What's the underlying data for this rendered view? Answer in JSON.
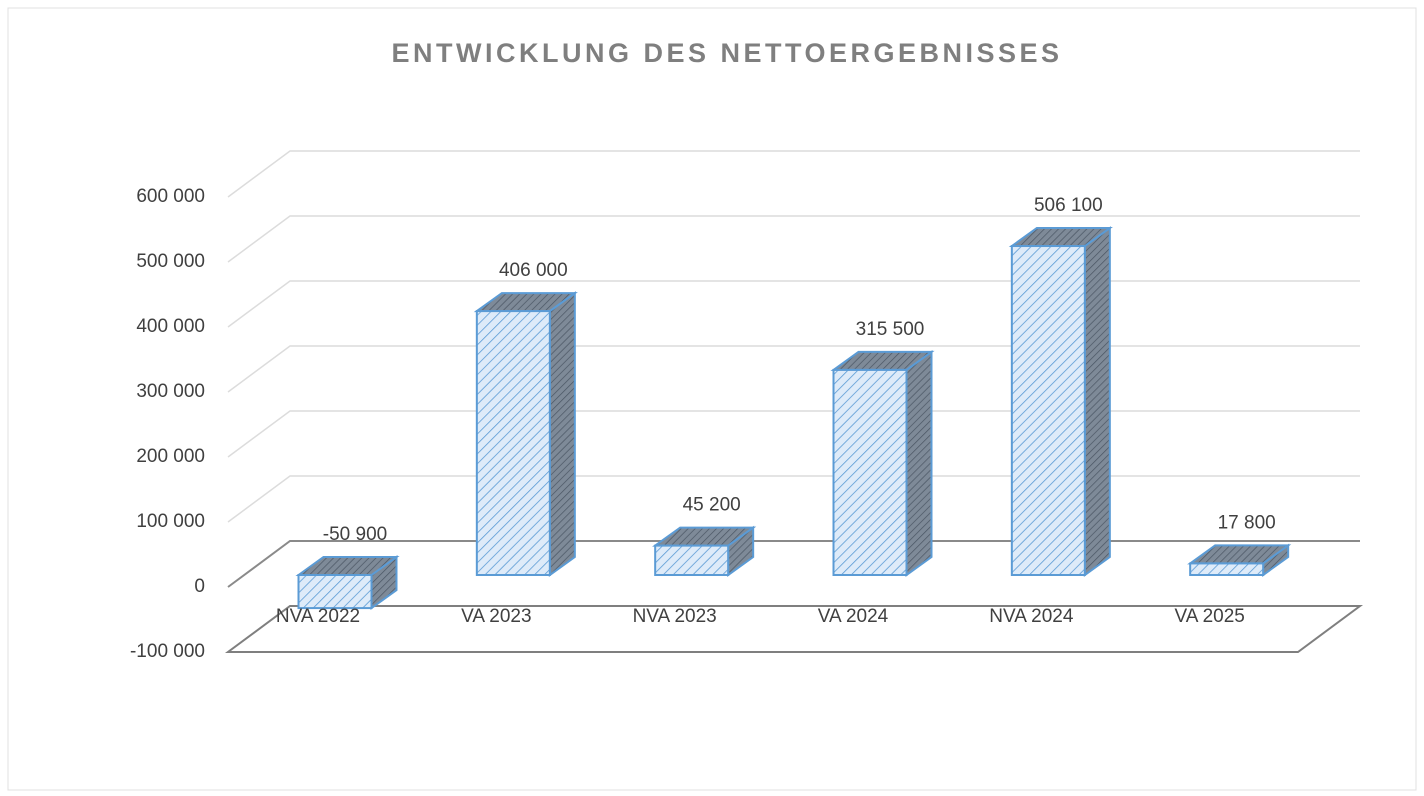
{
  "chart_data": {
    "type": "bar3d",
    "title": "ENTWICKLUNG DES NETTOERGEBNISSES",
    "categories": [
      "NVA 2022",
      "VA 2023",
      "NVA 2023",
      "VA 2024",
      "NVA 2024",
      "VA 2025"
    ],
    "values": [
      -50900,
      406000,
      45200,
      315500,
      506100,
      17800
    ],
    "value_labels": [
      "-50 900",
      "406 000",
      "45 200",
      "315 500",
      "506 100",
      "17 800"
    ],
    "color": "#5b9bd5",
    "ylim": [
      -100000,
      600000
    ],
    "yticks": [
      {
        "value": -100000,
        "label": "-100 000"
      },
      0,
      {
        "value": 100000,
        "label": "100 000"
      },
      {
        "value": 200000,
        "label": "200 000"
      },
      {
        "value": 300000,
        "label": "300 000"
      },
      {
        "value": 400000,
        "label": "400 000"
      },
      {
        "value": 500000,
        "label": "500 000"
      },
      {
        "value": 600000,
        "label": "600 000"
      }
    ],
    "grid": true
  }
}
